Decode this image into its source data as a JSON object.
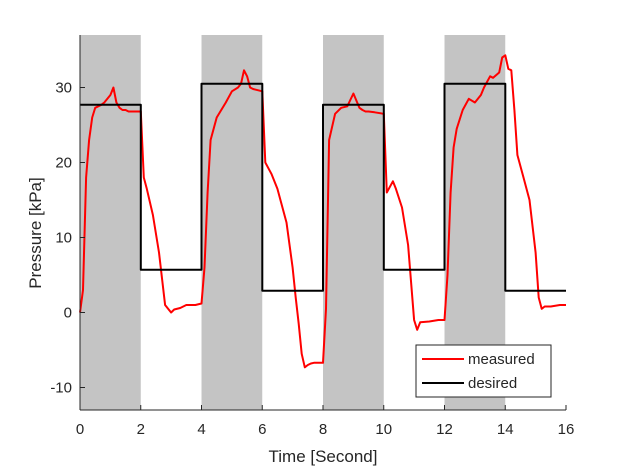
{
  "chart_data": {
    "type": "line",
    "title": "",
    "xlabel": "Time [Second]",
    "ylabel": "Pressure [kPa]",
    "xlim": [
      0,
      16
    ],
    "ylim": [
      -13,
      37
    ],
    "xticks": [
      0,
      2,
      4,
      6,
      8,
      10,
      12,
      14,
      16
    ],
    "yticks": [
      -10,
      0,
      10,
      20,
      30
    ],
    "grid": false,
    "legend_position": "bottom-right",
    "shaded_intervals": [
      [
        0,
        2
      ],
      [
        4,
        6
      ],
      [
        8,
        10
      ],
      [
        12,
        14
      ]
    ],
    "shade_color": "#c4c4c4",
    "series": [
      {
        "name": "measured",
        "color": "#ff0000",
        "x": [
          0,
          0.1,
          0.2,
          0.3,
          0.4,
          0.5,
          0.6,
          0.7,
          0.8,
          1.0,
          1.1,
          1.2,
          1.3,
          1.4,
          1.5,
          1.6,
          1.8,
          2.0,
          2.1,
          2.2,
          2.4,
          2.6,
          2.8,
          3.0,
          3.1,
          3.3,
          3.5,
          3.8,
          4.0,
          4.1,
          4.2,
          4.3,
          4.5,
          4.8,
          5.0,
          5.2,
          5.3,
          5.4,
          5.5,
          5.6,
          5.7,
          6.0,
          6.1,
          6.3,
          6.5,
          6.8,
          7.0,
          7.1,
          7.2,
          7.3,
          7.4,
          7.5,
          7.6,
          7.7,
          8.0,
          8.1,
          8.2,
          8.4,
          8.6,
          8.8,
          9.0,
          9.2,
          9.3,
          9.4,
          9.5,
          9.7,
          10.0,
          10.1,
          10.3,
          10.4,
          10.6,
          10.8,
          11.0,
          11.1,
          11.2,
          11.5,
          11.8,
          12.0,
          12.1,
          12.2,
          12.3,
          12.4,
          12.6,
          12.8,
          13.0,
          13.2,
          13.3,
          13.5,
          13.6,
          13.8,
          13.9,
          14.0,
          14.1,
          14.2,
          14.3,
          14.4,
          14.6,
          14.8,
          15.0,
          15.1,
          15.2,
          15.3,
          15.5,
          15.8,
          16.0
        ],
        "y": [
          0,
          3,
          18,
          23,
          26,
          27.3,
          27.5,
          27.7,
          28,
          29,
          30,
          28,
          27.3,
          27,
          27,
          26.8,
          26.8,
          26.8,
          18,
          16.5,
          13,
          8,
          1,
          0,
          0.4,
          0.6,
          1,
          1,
          1.2,
          6,
          16,
          23,
          26,
          28,
          29.5,
          30,
          30.5,
          32.3,
          31.5,
          30,
          29.8,
          29.5,
          20,
          18.5,
          16.5,
          12,
          6,
          2,
          -1.5,
          -5.5,
          -7.3,
          -7,
          -6.8,
          -6.7,
          -6.7,
          0.5,
          23,
          26.5,
          27.3,
          27.5,
          29.2,
          27.3,
          27,
          26.8,
          26.8,
          26.7,
          26.5,
          16,
          17.5,
          16.5,
          14,
          9,
          -1,
          -2.3,
          -1.3,
          -1.2,
          -1,
          -1,
          5,
          16,
          22,
          24.5,
          27,
          28.5,
          28,
          29,
          30,
          31.5,
          31.3,
          32,
          34,
          34.3,
          32.5,
          32.3,
          27,
          21,
          18,
          15,
          8,
          2,
          0.5,
          0.8,
          0.8,
          1,
          1
        ]
      },
      {
        "name": "desired",
        "color": "#000000",
        "x": [
          0,
          2,
          2,
          4,
          4,
          6,
          6,
          8,
          8,
          10,
          10,
          12,
          12,
          14,
          14,
          16
        ],
        "y": [
          27.7,
          27.7,
          5.7,
          5.7,
          30.5,
          30.5,
          2.9,
          2.9,
          27.7,
          27.7,
          5.7,
          5.7,
          30.5,
          30.5,
          2.9,
          2.9
        ]
      }
    ]
  }
}
